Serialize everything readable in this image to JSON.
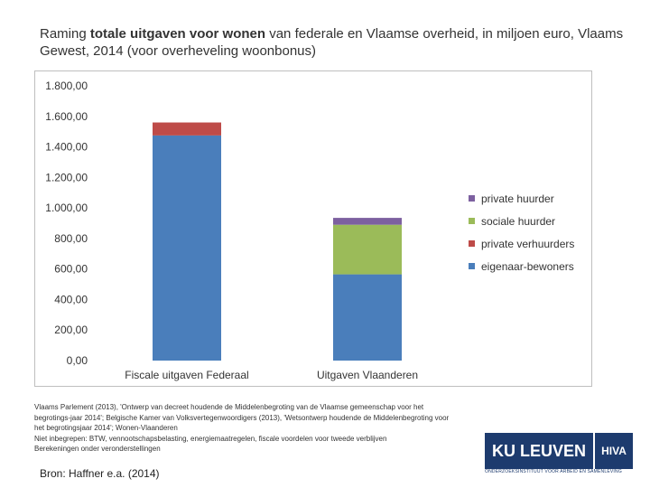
{
  "title": {
    "prefix": "Raming ",
    "bold": "totale uitgaven voor wonen",
    "suffix": " van federale en Vlaamse overheid, in miljoen euro, Vlaams Gewest, 2014 (voor overheveling woonbonus)"
  },
  "chart_data": {
    "type": "bar",
    "stacked": true,
    "categories": [
      "Fiscale uitgaven Federaal",
      "Uitgaven Vlaanderen"
    ],
    "series": [
      {
        "name": "eigenaar-bewoners",
        "color": "#4a7ebb",
        "values": [
          1475,
          565
        ]
      },
      {
        "name": "private verhuurders",
        "color": "#be4b48",
        "values": [
          85,
          0
        ]
      },
      {
        "name": "sociale huurder",
        "color": "#9bbb59",
        "values": [
          0,
          325
        ]
      },
      {
        "name": "private huurder",
        "color": "#7d60a0",
        "values": [
          0,
          45
        ]
      }
    ],
    "legend_order": [
      "private huurder",
      "sociale huurder",
      "private verhuurders",
      "eigenaar-bewoners"
    ],
    "ylim": [
      0,
      1800
    ],
    "y_ticks": [
      "0,00",
      "200,00",
      "400,00",
      "600,00",
      "800,00",
      "1.000,00",
      "1.200,00",
      "1.400,00",
      "1.600,00",
      "1.800,00"
    ],
    "grid": false,
    "legend_position": "right"
  },
  "notes": [
    "Vlaams Parlement (2013), 'Ontwerp van decreet houdende de Middelenbegroting van de Vlaamse gemeenschap voor het",
    "begrotings-jaar 2014'; Belgische Kamer van Volksvertegenwoordigers (2013), 'Wetsontwerp houdende de Middelenbegroting voor",
    "het begrotingsjaar 2014'; Wonen-Vlaanderen",
    "Niet inbegrepen: BTW, vennootschapsbelasting, energiemaatregelen, fiscale voordelen voor tweede verblijven",
    "Berekeningen onder veronderstellingen"
  ],
  "bron": "Bron: Haffner e.a. (2014)",
  "logo": {
    "ku": "KU LEUVEN",
    "hiva": "HIVA",
    "sub": "ONDERZOEKSINSTITUUT VOOR ARBEID EN SAMENLEVING"
  }
}
